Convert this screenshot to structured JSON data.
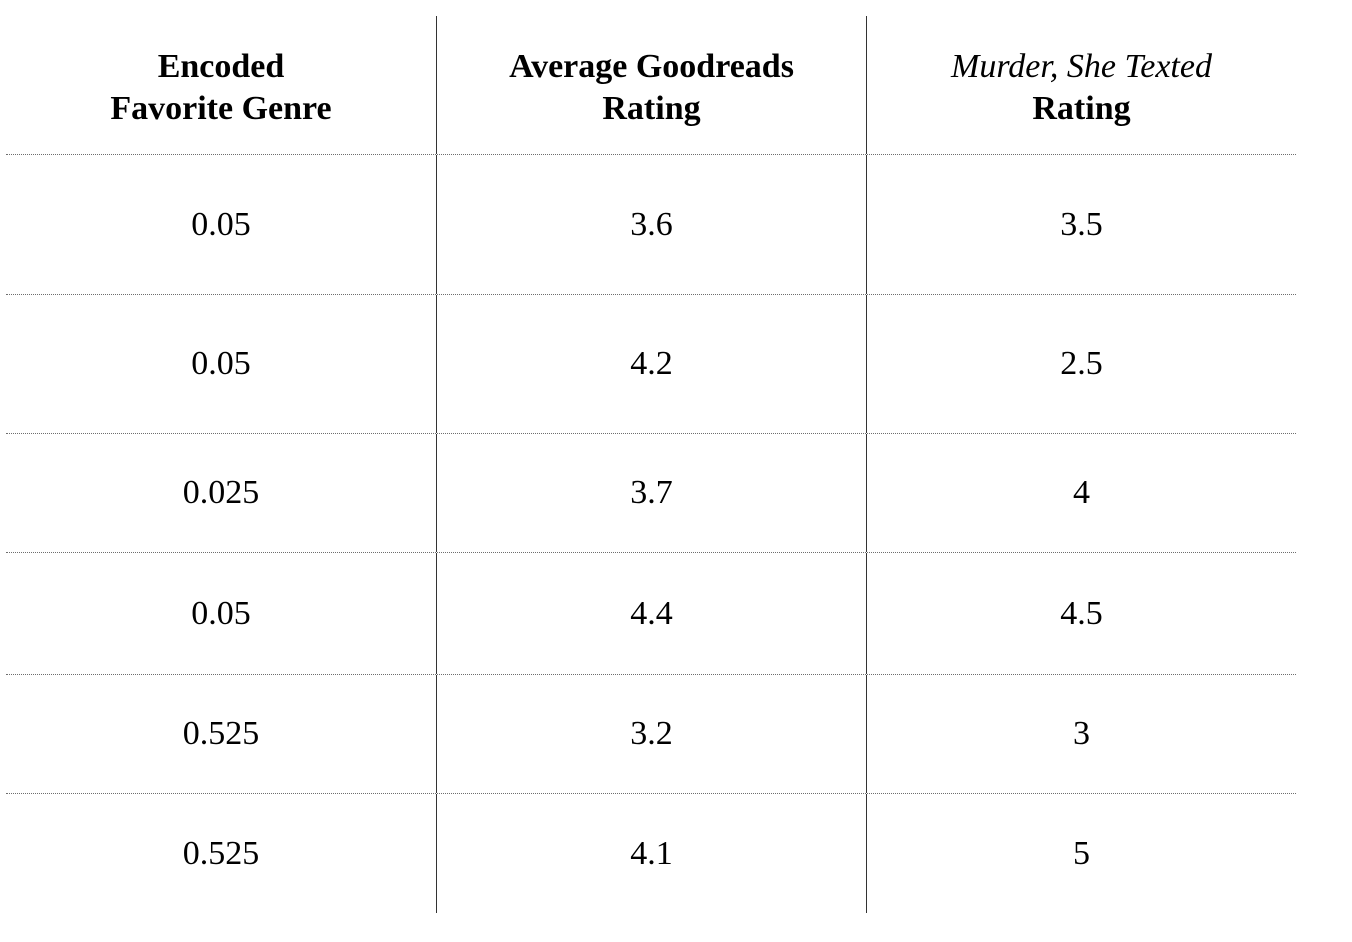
{
  "table": {
    "headers": [
      {
        "line1": "Encoded",
        "line2": "Favorite Genre"
      },
      {
        "line1": "Average Goodreads",
        "line2": "Rating"
      },
      {
        "line1": "Murder, She Texted",
        "line2": "Rating"
      }
    ],
    "rows": [
      [
        "0.05",
        "3.6",
        "3.5"
      ],
      [
        "0.05",
        "4.2",
        "2.5"
      ],
      [
        "0.025",
        "3.7",
        "4"
      ],
      [
        "0.05",
        "4.4",
        "4.5"
      ],
      [
        "0.525",
        "3.2",
        "3"
      ],
      [
        "0.525",
        "4.1",
        "5"
      ]
    ]
  }
}
